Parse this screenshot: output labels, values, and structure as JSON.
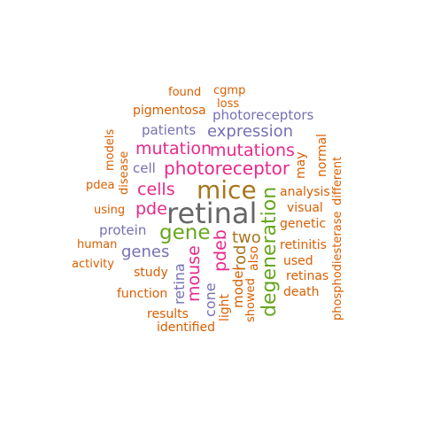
{
  "palette": {
    "orange": "#d95f02",
    "purple": "#7570b3",
    "magenta": "#e7298a",
    "green": "#66a61e",
    "gold": "#a6761d",
    "gray": "#666666"
  },
  "words": [
    {
      "text": "retinal",
      "color": "gray"
    },
    {
      "text": "mice",
      "color": "gold"
    },
    {
      "text": "photoreceptor",
      "color": "magenta"
    },
    {
      "text": "degeneration",
      "color": "green"
    },
    {
      "text": "gene",
      "color": "green"
    },
    {
      "text": "mutation",
      "color": "magenta"
    },
    {
      "text": "mutations",
      "color": "magenta"
    },
    {
      "text": "expression",
      "color": "purple"
    },
    {
      "text": "cells",
      "color": "magenta"
    },
    {
      "text": "pde",
      "color": "magenta"
    },
    {
      "text": "mouse",
      "color": "magenta"
    },
    {
      "text": "pdeb",
      "color": "magenta"
    },
    {
      "text": "rod",
      "color": "gold"
    },
    {
      "text": "two",
      "color": "gold"
    },
    {
      "text": "genes",
      "color": "purple"
    },
    {
      "text": "photoreceptors",
      "color": "purple"
    },
    {
      "text": "patients",
      "color": "purple"
    },
    {
      "text": "pigmentosa",
      "color": "orange"
    },
    {
      "text": "retina",
      "color": "purple"
    },
    {
      "text": "protein",
      "color": "purple"
    },
    {
      "text": "cell",
      "color": "purple"
    },
    {
      "text": "cone",
      "color": "purple"
    },
    {
      "text": "model",
      "color": "orange"
    },
    {
      "text": "found",
      "color": "orange"
    },
    {
      "text": "cgmp",
      "color": "orange"
    },
    {
      "text": "loss",
      "color": "orange"
    },
    {
      "text": "models",
      "color": "orange"
    },
    {
      "text": "disease",
      "color": "orange"
    },
    {
      "text": "pdea",
      "color": "orange"
    },
    {
      "text": "using",
      "color": "orange"
    },
    {
      "text": "human",
      "color": "orange"
    },
    {
      "text": "activity",
      "color": "orange"
    },
    {
      "text": "study",
      "color": "orange"
    },
    {
      "text": "function",
      "color": "orange"
    },
    {
      "text": "results",
      "color": "orange"
    },
    {
      "text": "identified",
      "color": "orange"
    },
    {
      "text": "light",
      "color": "orange"
    },
    {
      "text": "showed",
      "color": "orange"
    },
    {
      "text": "also",
      "color": "orange"
    },
    {
      "text": "analysis",
      "color": "orange"
    },
    {
      "text": "visual",
      "color": "orange"
    },
    {
      "text": "genetic",
      "color": "orange"
    },
    {
      "text": "retinitis",
      "color": "orange"
    },
    {
      "text": "used",
      "color": "orange"
    },
    {
      "text": "retinas",
      "color": "orange"
    },
    {
      "text": "death",
      "color": "orange"
    },
    {
      "text": "may",
      "color": "orange"
    },
    {
      "text": "normal",
      "color": "orange"
    },
    {
      "text": "different",
      "color": "orange"
    },
    {
      "text": "phosphodiesterase",
      "color": "orange"
    }
  ]
}
